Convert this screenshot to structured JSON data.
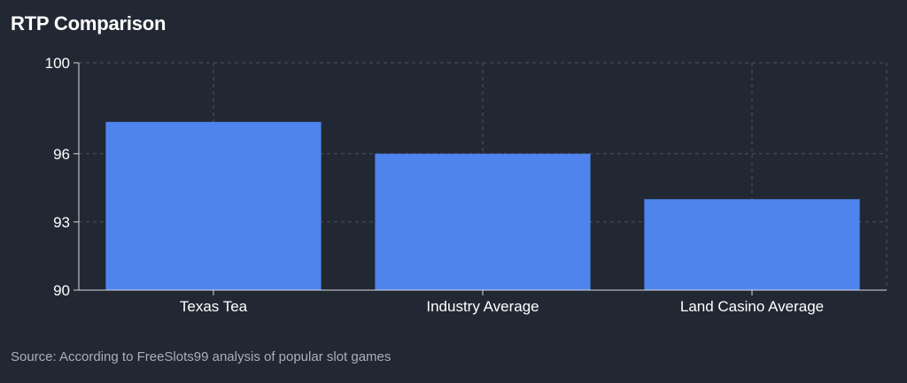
{
  "title": "RTP Comparison",
  "source": "Source: According to FreeSlots99 analysis of popular slot games",
  "colors": {
    "background": "#222833",
    "bar": "#4f84ee",
    "grid": "#44555c",
    "axis": "#d6d9de",
    "text": "#ffffff"
  },
  "chart_data": {
    "type": "bar",
    "title": "RTP Comparison",
    "categories": [
      "Texas Tea",
      "Industry Average",
      "Land Casino Average"
    ],
    "values": [
      97.4,
      96,
      94
    ],
    "ylim": [
      90,
      100
    ],
    "yticks": [
      90,
      93,
      96,
      100
    ],
    "xlabel": "",
    "ylabel": "",
    "grid": true,
    "legend": "none"
  }
}
